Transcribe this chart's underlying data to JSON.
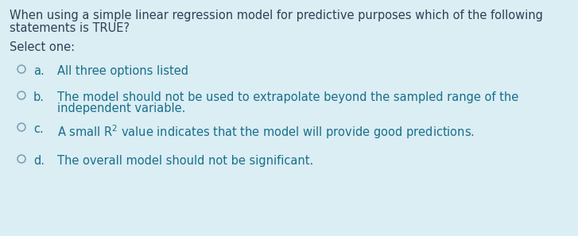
{
  "bg_color": "#daeef3",
  "question_text_line1": "When using a simple linear regression model for predictive purposes which of the following",
  "question_text_line2": "statements is TRUE?",
  "question_color": "#2e4057",
  "select_one_text": "Select one:",
  "options": [
    {
      "letter": "a.",
      "text": "All three options listed",
      "text2": null,
      "has_sup": false
    },
    {
      "letter": "b.",
      "text": "The model should not be used to extrapolate beyond the sampled range of the",
      "text2": "independent variable.",
      "has_sup": false
    },
    {
      "letter": "c.",
      "text": "A small R$^{2}$ value indicates that the model will provide good predictions.",
      "text2": null,
      "has_sup": true
    },
    {
      "letter": "d.",
      "text": "The overall model should not be significant.",
      "text2": null,
      "has_sup": false
    }
  ],
  "text_color": "#1a6e8c",
  "circle_color": "#7a9bb5",
  "font_size": 10.5
}
